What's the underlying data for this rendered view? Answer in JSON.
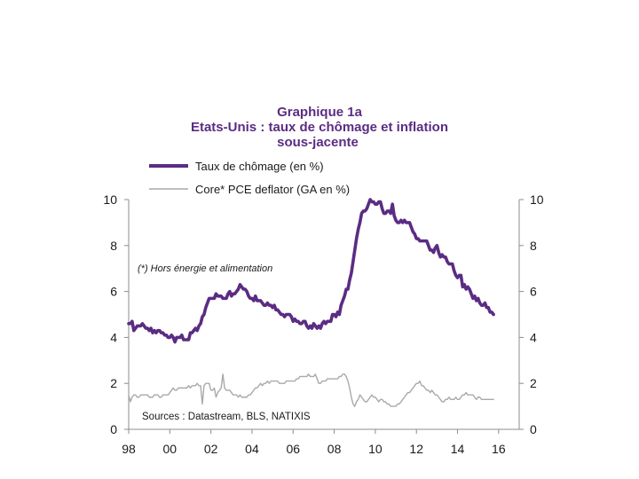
{
  "chart_data": {
    "type": "line",
    "title": [
      "Graphique 1a",
      "Etats-Unis : taux de chômage et inflation",
      "sous-jacente"
    ],
    "title_color": "#5b2c83",
    "xlabel": "",
    "ylabel": "",
    "xlim": [
      1998,
      2017
    ],
    "x_ticks": [
      1998,
      2000,
      2002,
      2004,
      2006,
      2008,
      2010,
      2012,
      2014,
      2016
    ],
    "x_tick_labels": [
      "98",
      "00",
      "02",
      "04",
      "06",
      "08",
      "10",
      "12",
      "14",
      "16"
    ],
    "y_left": {
      "lim": [
        0,
        10
      ],
      "ticks": [
        0,
        2,
        4,
        6,
        8,
        10
      ]
    },
    "y_right": {
      "lim": [
        0,
        10
      ],
      "ticks": [
        0,
        2,
        4,
        6,
        8,
        10
      ]
    },
    "grid": false,
    "legend_position": "top-left",
    "annotations": [
      "(*) Hors énergie et alimentation",
      "Sources : Datastream, BLS, NATIXIS"
    ],
    "series": [
      {
        "name": "Taux de chômage (en %)",
        "color": "#5b2c83",
        "x_start": 1998.0,
        "x_step": 0.0833333,
        "values": [
          4.6,
          4.6,
          4.7,
          4.3,
          4.4,
          4.5,
          4.5,
          4.5,
          4.6,
          4.5,
          4.4,
          4.4,
          4.3,
          4.4,
          4.2,
          4.3,
          4.2,
          4.3,
          4.3,
          4.2,
          4.2,
          4.1,
          4.1,
          4.0,
          4.0,
          4.1,
          4.0,
          3.8,
          4.0,
          4.0,
          4.0,
          4.1,
          3.9,
          3.9,
          3.9,
          3.9,
          4.2,
          4.2,
          4.3,
          4.4,
          4.3,
          4.5,
          4.6,
          4.9,
          5.0,
          5.3,
          5.5,
          5.7,
          5.7,
          5.7,
          5.7,
          5.9,
          5.8,
          5.8,
          5.8,
          5.7,
          5.7,
          5.7,
          5.9,
          6.0,
          5.8,
          5.9,
          5.9,
          6.0,
          6.1,
          6.3,
          6.2,
          6.1,
          6.1,
          6.0,
          5.8,
          5.7,
          5.7,
          5.6,
          5.8,
          5.6,
          5.6,
          5.6,
          5.5,
          5.4,
          5.4,
          5.5,
          5.4,
          5.4,
          5.3,
          5.4,
          5.2,
          5.2,
          5.1,
          5.0,
          5.0,
          4.9,
          5.0,
          5.0,
          5.0,
          4.9,
          4.7,
          4.8,
          4.7,
          4.7,
          4.6,
          4.6,
          4.7,
          4.7,
          4.5,
          4.4,
          4.5,
          4.4,
          4.6,
          4.5,
          4.4,
          4.5,
          4.4,
          4.6,
          4.7,
          4.6,
          4.7,
          4.7,
          4.7,
          5.0,
          5.0,
          4.9,
          5.1,
          5.0,
          5.4,
          5.6,
          5.8,
          6.1,
          6.1,
          6.5,
          6.8,
          7.3,
          7.8,
          8.3,
          8.7,
          9.0,
          9.4,
          9.5,
          9.5,
          9.6,
          9.8,
          10.0,
          9.9,
          9.9,
          9.8,
          9.8,
          9.9,
          9.9,
          9.6,
          9.4,
          9.4,
          9.5,
          9.5,
          9.4,
          9.8,
          9.3,
          9.1,
          9.0,
          9.0,
          9.1,
          9.0,
          9.1,
          9.0,
          9.0,
          9.0,
          8.8,
          8.6,
          8.5,
          8.3,
          8.3,
          8.2,
          8.2,
          8.2,
          8.2,
          8.2,
          8.0,
          7.8,
          7.8,
          7.7,
          7.9,
          8.0,
          7.7,
          7.5,
          7.6,
          7.5,
          7.5,
          7.3,
          7.2,
          7.2,
          7.2,
          6.9,
          6.7,
          6.6,
          6.7,
          6.7,
          6.2,
          6.3,
          6.1,
          6.2,
          6.1,
          5.9,
          5.7,
          5.8,
          5.6,
          5.7,
          5.5,
          5.4,
          5.4,
          5.5,
          5.3,
          5.3,
          5.1,
          5.1,
          5.0
        ]
      },
      {
        "name": "Core* PCE deflator (GA en %)",
        "color": "#a9a9a9",
        "x_start": 1998.0,
        "x_step": 0.0833333,
        "values": [
          1.5,
          1.2,
          1.4,
          1.5,
          1.5,
          1.4,
          1.4,
          1.5,
          1.5,
          1.5,
          1.5,
          1.5,
          1.4,
          1.4,
          1.4,
          1.5,
          1.5,
          1.5,
          1.4,
          1.4,
          1.5,
          1.5,
          1.5,
          1.5,
          1.6,
          1.7,
          1.8,
          1.7,
          1.7,
          1.8,
          1.8,
          1.8,
          1.8,
          1.8,
          1.8,
          1.9,
          1.8,
          1.9,
          1.9,
          1.9,
          2.0,
          1.9,
          1.9,
          1.1,
          1.9,
          2.0,
          2.0,
          2.0,
          1.7,
          1.7,
          1.8,
          1.4,
          1.6,
          1.7,
          1.8,
          2.4,
          1.8,
          1.7,
          1.7,
          1.7,
          1.6,
          1.5,
          1.5,
          1.5,
          1.4,
          1.5,
          1.4,
          1.4,
          1.4,
          1.4,
          1.5,
          1.5,
          1.6,
          1.7,
          1.8,
          1.8,
          1.9,
          2.0,
          1.9,
          2.0,
          2.0,
          2.1,
          2.0,
          2.1,
          2.1,
          2.1,
          2.1,
          2.1,
          2.0,
          2.0,
          2.0,
          2.0,
          2.1,
          2.1,
          2.1,
          2.1,
          2.1,
          2.1,
          2.2,
          2.2,
          2.3,
          2.3,
          2.3,
          2.3,
          2.3,
          2.4,
          2.3,
          2.3,
          2.3,
          2.4,
          2.2,
          2.0,
          2.0,
          2.1,
          2.1,
          2.1,
          2.2,
          2.2,
          2.2,
          2.2,
          2.2,
          2.2,
          2.2,
          2.3,
          2.3,
          2.4,
          2.4,
          2.3,
          2.1,
          1.8,
          1.4,
          1.1,
          1.0,
          1.2,
          1.3,
          1.5,
          1.4,
          1.3,
          1.2,
          1.2,
          1.3,
          1.4,
          1.5,
          1.4,
          1.4,
          1.3,
          1.2,
          1.3,
          1.3,
          1.2,
          1.2,
          1.1,
          1.1,
          1.0,
          1.0,
          1.0,
          1.0,
          1.1,
          1.1,
          1.2,
          1.3,
          1.4,
          1.5,
          1.6,
          1.6,
          1.7,
          1.8,
          1.9,
          2.0,
          2.0,
          2.1,
          1.9,
          1.9,
          1.8,
          1.7,
          1.7,
          1.6,
          1.7,
          1.6,
          1.5,
          1.5,
          1.4,
          1.3,
          1.2,
          1.2,
          1.3,
          1.3,
          1.4,
          1.3,
          1.3,
          1.3,
          1.4,
          1.3,
          1.3,
          1.4,
          1.5,
          1.5,
          1.6,
          1.5,
          1.5,
          1.5,
          1.5,
          1.4,
          1.3,
          1.4,
          1.4,
          1.3,
          1.3,
          1.3,
          1.3,
          1.3,
          1.3,
          1.3,
          1.3
        ]
      }
    ]
  }
}
